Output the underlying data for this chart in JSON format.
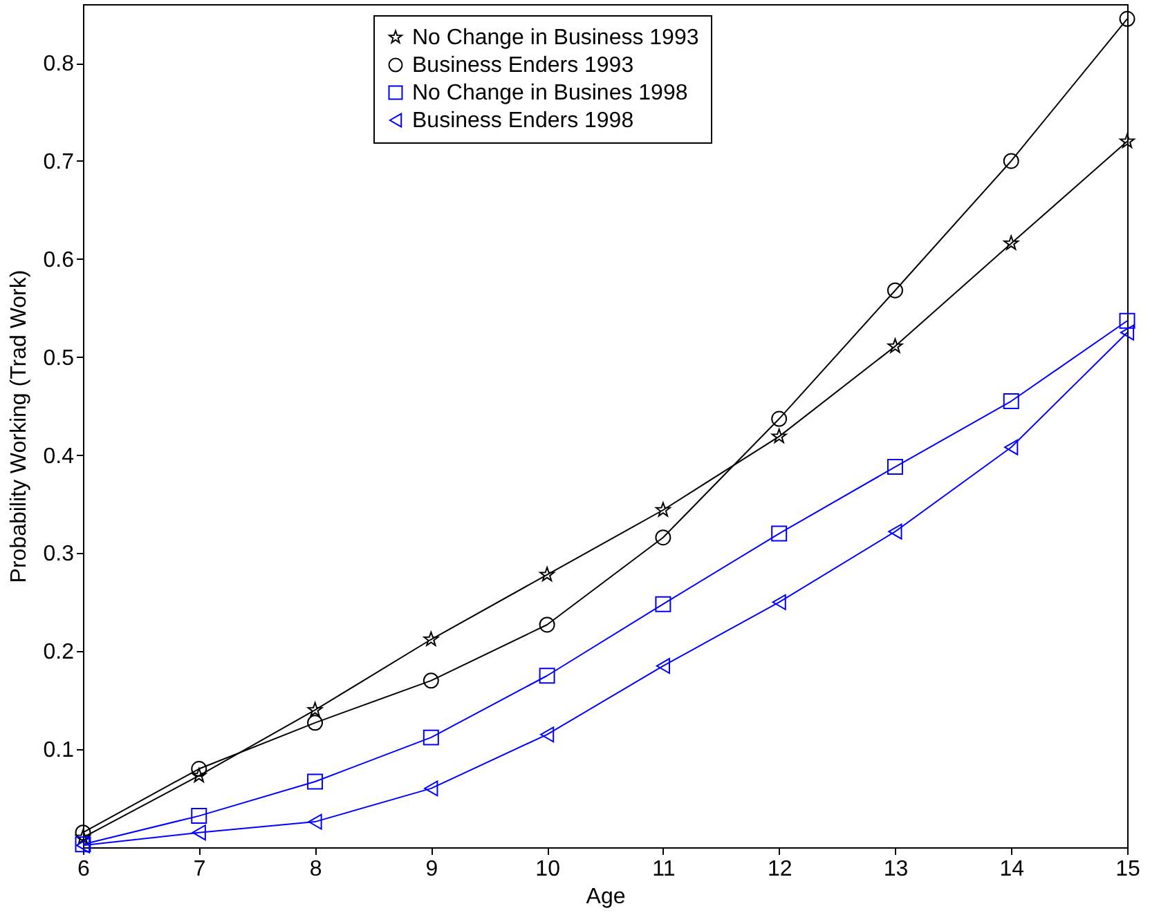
{
  "chart_data": {
    "type": "line",
    "xlabel": "Age",
    "ylabel": "Probability Working (Trad Work)",
    "x": [
      6,
      7,
      8,
      9,
      10,
      11,
      12,
      13,
      14,
      15
    ],
    "xlim": [
      6,
      15
    ],
    "xticks": [
      6,
      7,
      8,
      9,
      10,
      11,
      12,
      13,
      14,
      15
    ],
    "ylim": [
      0,
      0.86
    ],
    "yticks": [
      0.1,
      0.2,
      0.3,
      0.4,
      0.5,
      0.6,
      0.7,
      0.8
    ],
    "grid": false,
    "legend": "top",
    "series": [
      {
        "name": "No Change in Business 1993",
        "color": "#000000",
        "marker": "star",
        "values": [
          0.01,
          0.073,
          0.14,
          0.212,
          0.278,
          0.344,
          0.419,
          0.511,
          0.616,
          0.72
        ]
      },
      {
        "name": "Business Enders 1993",
        "color": "#000000",
        "marker": "circle",
        "values": [
          0.015,
          0.08,
          0.127,
          0.17,
          0.227,
          0.316,
          0.437,
          0.568,
          0.7,
          0.845
        ]
      },
      {
        "name": "No Change in Busines 1998",
        "color": "#0000ff",
        "marker": "square",
        "values": [
          0.003,
          0.032,
          0.067,
          0.112,
          0.175,
          0.248,
          0.32,
          0.388,
          0.455,
          0.537
        ]
      },
      {
        "name": "Business Enders 1998",
        "color": "#0000ff",
        "marker": "triangle",
        "values": [
          0.002,
          0.015,
          0.026,
          0.06,
          0.115,
          0.185,
          0.25,
          0.322,
          0.408,
          0.525
        ]
      }
    ]
  }
}
